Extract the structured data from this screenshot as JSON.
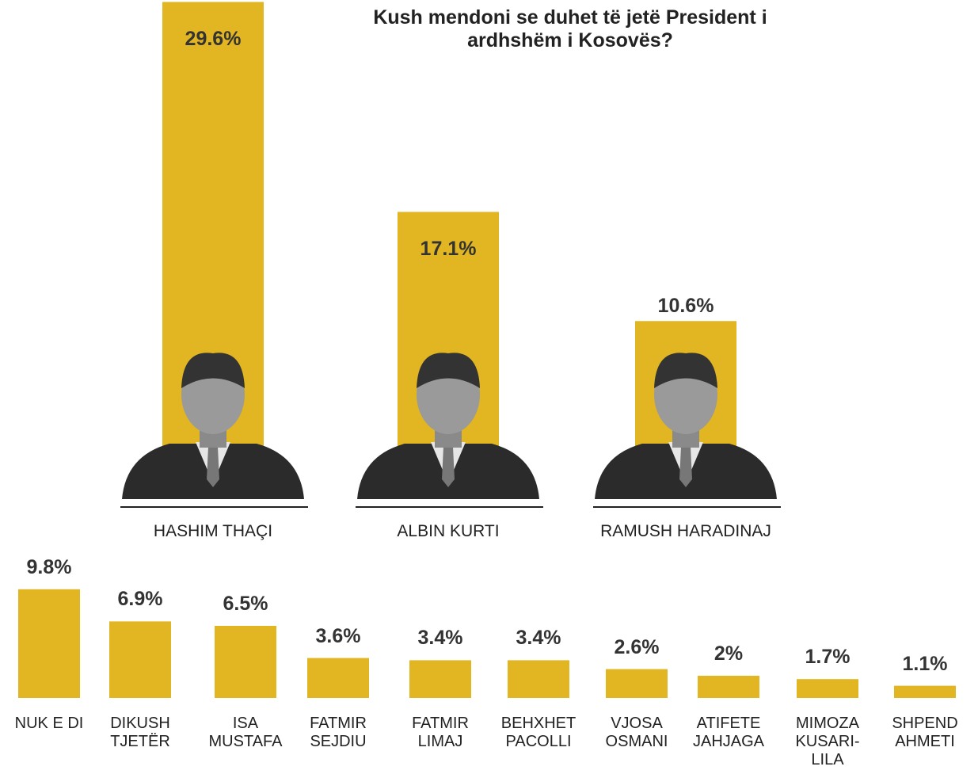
{
  "chart_data": [
    {
      "type": "bar",
      "title": "Kush mendoni se duhet të jetë President i ardhshëm i Kosovës?",
      "categories": [
        "HASHIM THAÇI",
        "ALBIN KURTI",
        "RAMUSH HARADINAJ"
      ],
      "values": [
        29.6,
        17.1,
        10.6
      ],
      "value_labels": [
        "29.6%",
        "17.1%",
        "10.6%"
      ],
      "color": "#e2b522"
    },
    {
      "type": "bar",
      "categories": [
        "NUK E DI",
        "DIKUSH TJETËR",
        "ISA MUSTAFA",
        "FATMIR SEJDIU",
        "FATMIR LIMAJ",
        "BEHXHET PACOLLI",
        "VJOSA OSMANI",
        "ATIFETE JAHJAGA",
        "MIMOZA KUSARI-LILA",
        "SHPEND AHMETI"
      ],
      "values": [
        9.8,
        6.9,
        6.5,
        3.6,
        3.4,
        3.4,
        2.6,
        2,
        1.7,
        1.1
      ],
      "value_labels": [
        "9.8%",
        "6.9%",
        "6.5%",
        "3.6%",
        "3.4%",
        "3.4%",
        "2.6%",
        "2%",
        "1.7%",
        "1.1%"
      ],
      "color": "#e2b522"
    }
  ]
}
